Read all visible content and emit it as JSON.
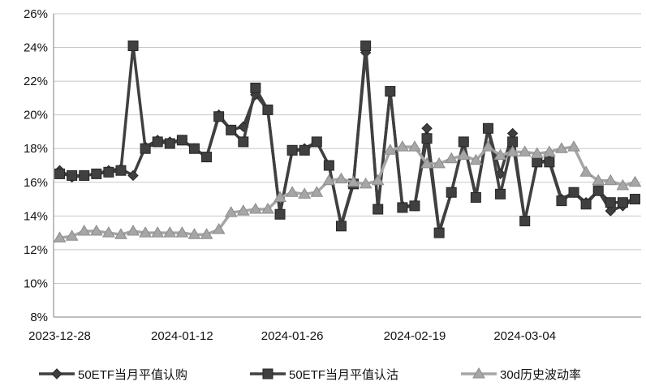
{
  "chart_data": {
    "type": "line",
    "title": "",
    "xlabel": "",
    "ylabel": "",
    "ylim": [
      0.08,
      0.26
    ],
    "y_ticks": [
      "8%",
      "10%",
      "12%",
      "14%",
      "16%",
      "18%",
      "20%",
      "22%",
      "24%",
      "26%"
    ],
    "y_tick_values": [
      0.08,
      0.1,
      0.12,
      0.14,
      0.16,
      0.18,
      0.2,
      0.22,
      0.24,
      0.26
    ],
    "x_tick_labels": [
      "2023-12-28",
      "2024-01-12",
      "2024-01-26",
      "2024-02-19",
      "2024-03-04"
    ],
    "x_tick_index": [
      0,
      10,
      19,
      29,
      38
    ],
    "grid": "horizontal",
    "legend_position": "bottom",
    "point_count": 48,
    "series": [
      {
        "name": "50ETF当月平值认购",
        "marker": "diamond",
        "color": "#3f3f3f",
        "values": [
          0.167,
          0.163,
          0.164,
          0.165,
          0.167,
          0.168,
          0.164,
          0.181,
          0.185,
          0.184,
          0.185,
          0.18,
          0.175,
          0.2,
          0.191,
          0.193,
          0.212,
          0.203,
          0.142,
          0.179,
          0.18,
          0.184,
          0.17,
          0.135,
          0.16,
          0.237,
          0.145,
          0.214,
          0.146,
          0.146,
          0.192,
          0.131,
          0.154,
          0.184,
          0.152,
          0.192,
          0.165,
          0.189,
          0.137,
          0.172,
          0.173,
          0.15,
          0.154,
          0.148,
          0.155,
          0.143,
          0.146,
          0.15
        ]
      },
      {
        "name": "50ETF当月平值认沽",
        "marker": "square",
        "color": "#404040",
        "values": [
          0.165,
          0.164,
          0.164,
          0.165,
          0.166,
          0.167,
          0.241,
          0.18,
          0.184,
          0.183,
          0.185,
          0.18,
          0.175,
          0.199,
          0.191,
          0.184,
          0.216,
          0.203,
          0.141,
          0.179,
          0.179,
          0.184,
          0.17,
          0.134,
          0.159,
          0.241,
          0.144,
          0.214,
          0.145,
          0.146,
          0.186,
          0.13,
          0.154,
          0.184,
          0.151,
          0.192,
          0.153,
          0.184,
          0.137,
          0.172,
          0.172,
          0.149,
          0.154,
          0.147,
          0.155,
          0.148,
          0.148,
          0.15
        ]
      },
      {
        "name": "30d历史波动率",
        "marker": "triangle",
        "color": "#a6a6a6",
        "values": [
          0.127,
          0.128,
          0.131,
          0.131,
          0.13,
          0.129,
          0.131,
          0.13,
          0.13,
          0.13,
          0.13,
          0.129,
          0.129,
          0.132,
          0.142,
          0.143,
          0.144,
          0.144,
          0.151,
          0.154,
          0.153,
          0.154,
          0.161,
          0.162,
          0.16,
          0.159,
          0.161,
          0.179,
          0.181,
          0.181,
          0.171,
          0.171,
          0.174,
          0.176,
          0.173,
          0.181,
          0.176,
          0.178,
          0.178,
          0.177,
          0.178,
          0.18,
          0.181,
          0.166,
          0.161,
          0.161,
          0.158,
          0.16
        ]
      }
    ]
  }
}
